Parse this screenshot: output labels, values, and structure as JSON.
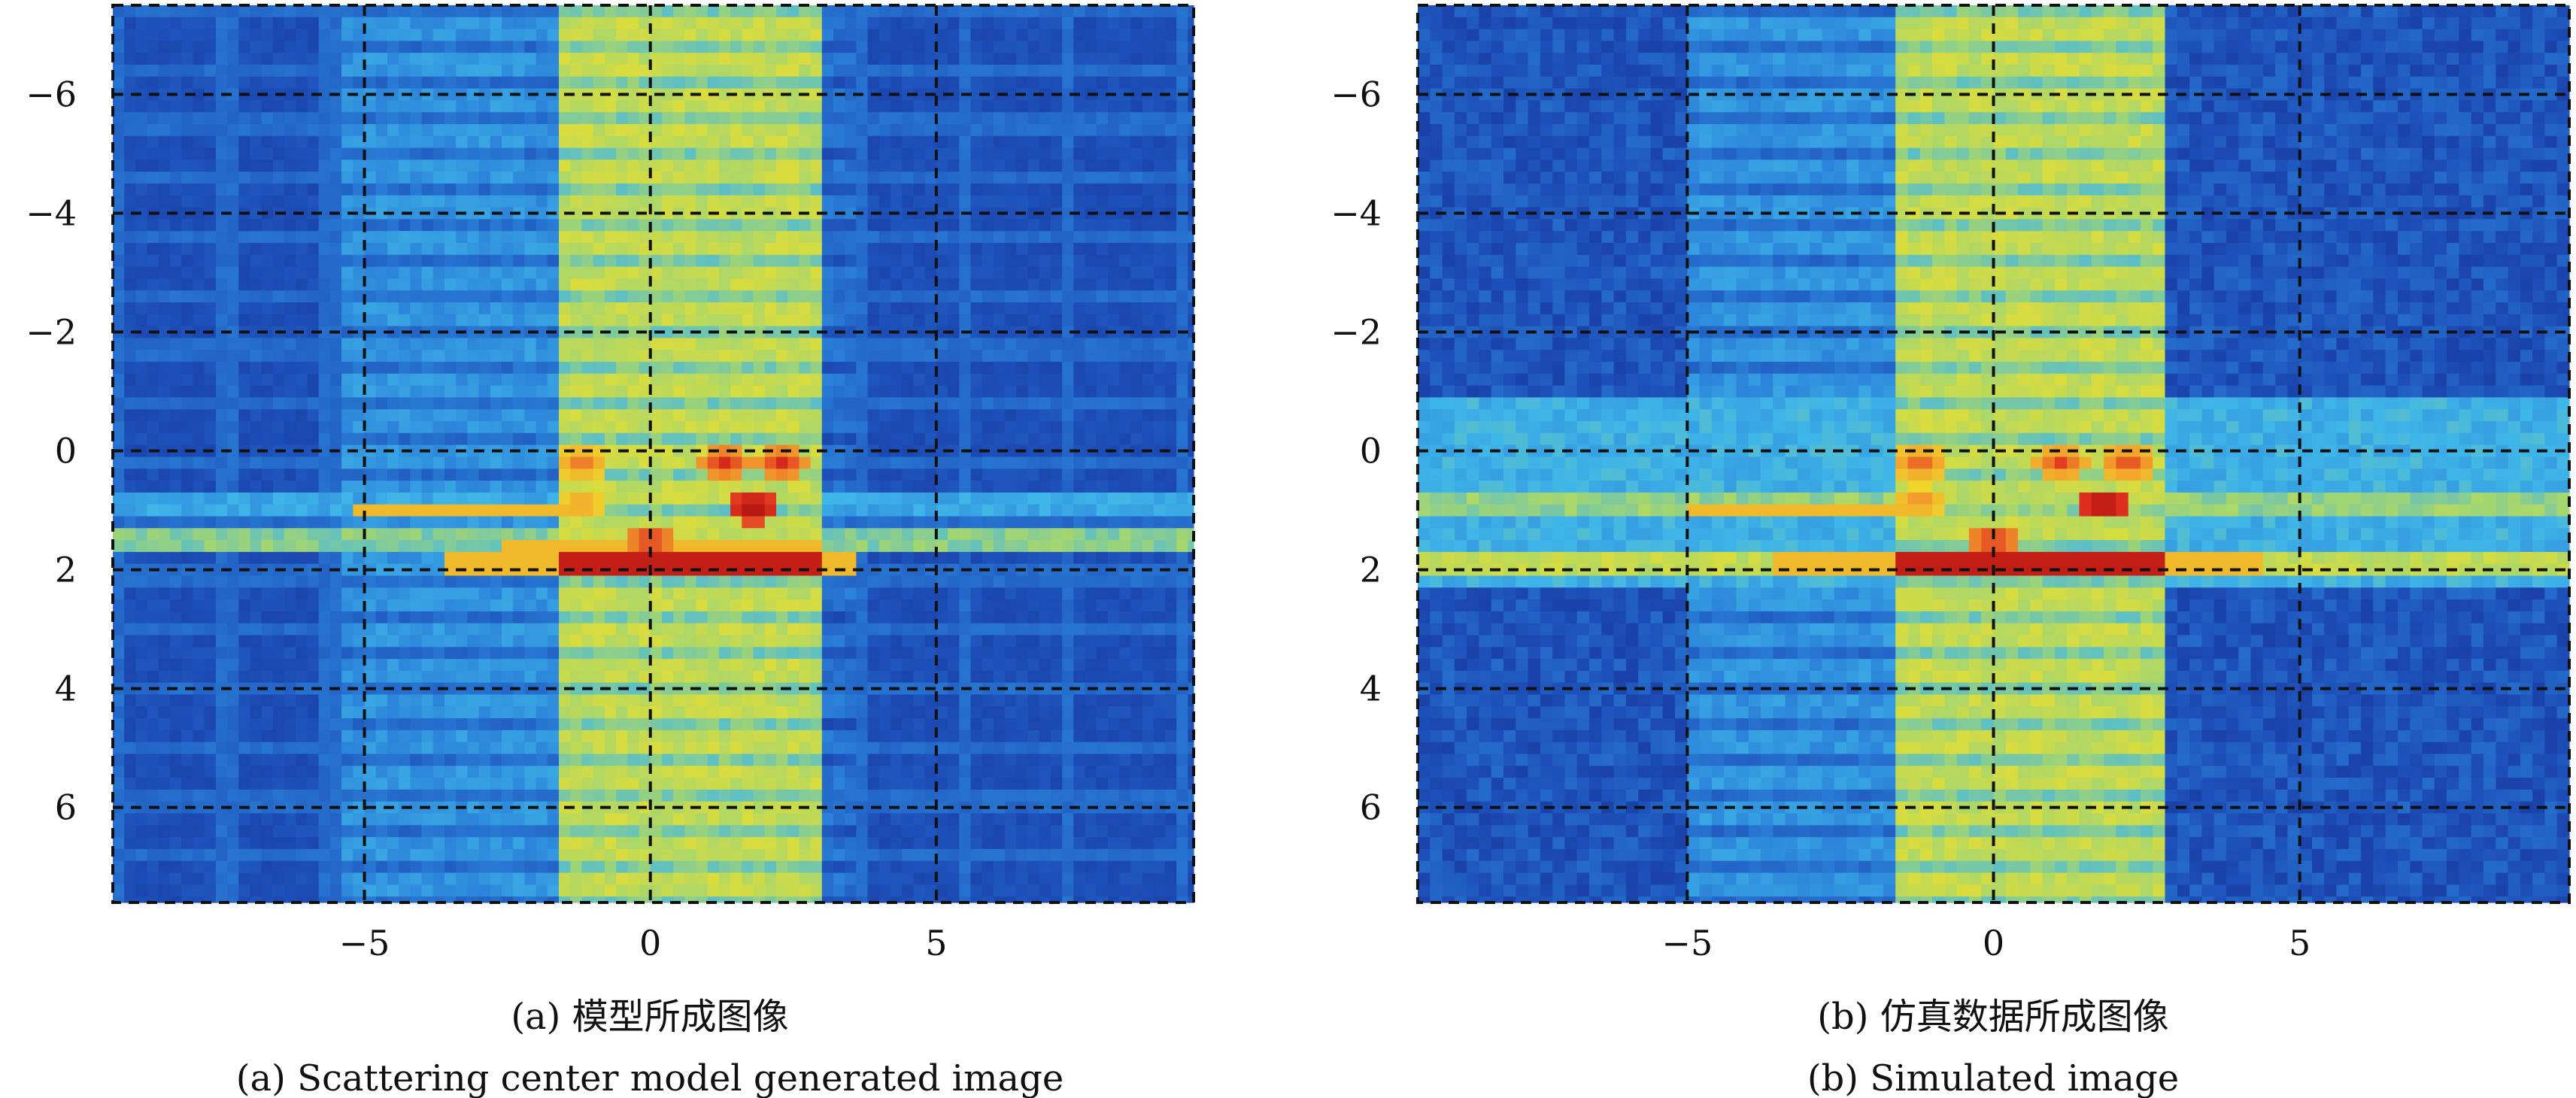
{
  "colormap": [
    "#14288a",
    "#1d4fb8",
    "#2a7fd8",
    "#3fb6e8",
    "#a6d66e",
    "#eedf2a",
    "#f2a02c",
    "#e03020",
    "#a00a0a"
  ],
  "chart_data": [
    {
      "type": "heatmap",
      "id": "a",
      "caption_cn": "(a) 模型所成图像",
      "caption_en": "(a) Scattering center model generated image",
      "xlim": [
        -9.4,
        9.5
      ],
      "ylim": [
        -7.5,
        7.6
      ],
      "y_reversed": true,
      "xticks": [
        -5,
        0,
        5
      ],
      "xtick_labels": [
        "−5",
        "0",
        "5"
      ],
      "yticks": [
        -6,
        -4,
        -2,
        0,
        2,
        4,
        6
      ],
      "ytick_labels": [
        "−6",
        "−4",
        "−2",
        "0",
        "2",
        "4",
        "6"
      ],
      "grid": "dashed",
      "background_level": 0.12,
      "background_pattern": "periodic",
      "bands": [
        {
          "axis": "x",
          "from": -5.3,
          "to": -1.7,
          "level": 0.3
        },
        {
          "axis": "x",
          "from": -1.7,
          "to": 3.0,
          "level": 0.55
        },
        {
          "axis": "x",
          "from": 3.0,
          "to": 3.6,
          "level": 0.22
        },
        {
          "axis": "y",
          "from": 0.6,
          "to": 1.05,
          "level": 0.34
        },
        {
          "axis": "y",
          "from": 1.3,
          "to": 1.75,
          "level": 0.46
        }
      ],
      "segments": [
        {
          "y": 1.0,
          "x0": -5.2,
          "x1": -1.5,
          "level": 0.7
        },
        {
          "y": 1.6,
          "x0": -2.6,
          "x1": 3.0,
          "level": 0.7
        },
        {
          "y": 1.95,
          "x0": -3.6,
          "x1": 3.7,
          "level": 0.7
        },
        {
          "y": 1.95,
          "x0": -1.7,
          "x1": 3.0,
          "level": 0.93
        }
      ],
      "scatterers": [
        {
          "x": -1.2,
          "y": 0.2,
          "level": 0.82
        },
        {
          "x": 1.3,
          "y": 0.2,
          "level": 0.9
        },
        {
          "x": 2.3,
          "y": 0.2,
          "level": 0.9
        },
        {
          "x": -1.2,
          "y": 0.9,
          "level": 0.78
        },
        {
          "x": 1.8,
          "y": 0.95,
          "level": 1.0
        },
        {
          "x": 0.0,
          "y": 1.5,
          "level": 0.9
        }
      ]
    },
    {
      "type": "heatmap",
      "id": "b",
      "caption_cn": "(b) 仿真数据所成图像",
      "caption_en": "(b) Simulated image",
      "xlim": [
        -9.4,
        9.4
      ],
      "ylim": [
        -7.5,
        7.6
      ],
      "y_reversed": true,
      "xticks": [
        -5,
        0,
        5
      ],
      "xtick_labels": [
        "−5",
        "0",
        "5"
      ],
      "yticks": [
        -6,
        -4,
        -2,
        0,
        2,
        4,
        6
      ],
      "ytick_labels": [
        "−6",
        "−4",
        "−2",
        "0",
        "2",
        "4",
        "6"
      ],
      "grid": "dashed",
      "background_level": 0.14,
      "background_pattern": "noise",
      "bands": [
        {
          "axis": "x",
          "from": -5.0,
          "to": -1.7,
          "level": 0.3
        },
        {
          "axis": "x",
          "from": -1.7,
          "to": 2.9,
          "level": 0.55
        },
        {
          "axis": "y",
          "from": -0.8,
          "to": 2.3,
          "level": 0.36
        },
        {
          "axis": "y",
          "from": 0.7,
          "to": 1.1,
          "level": 0.48
        },
        {
          "axis": "y",
          "from": 1.6,
          "to": 2.2,
          "level": 0.55
        }
      ],
      "segments": [
        {
          "y": 1.0,
          "x0": -5.0,
          "x1": -1.3,
          "level": 0.7
        },
        {
          "y": 1.95,
          "x0": -3.6,
          "x1": 4.4,
          "level": 0.7
        },
        {
          "y": 1.95,
          "x0": -1.6,
          "x1": 2.8,
          "level": 0.93
        }
      ],
      "scatterers": [
        {
          "x": -1.2,
          "y": 0.2,
          "level": 0.84
        },
        {
          "x": 1.1,
          "y": 0.2,
          "level": 0.86
        },
        {
          "x": 2.2,
          "y": 0.2,
          "level": 0.86
        },
        {
          "x": -1.2,
          "y": 0.85,
          "level": 0.8
        },
        {
          "x": 1.8,
          "y": 0.9,
          "level": 1.0
        },
        {
          "x": 0.0,
          "y": 1.5,
          "level": 0.9
        }
      ]
    }
  ]
}
